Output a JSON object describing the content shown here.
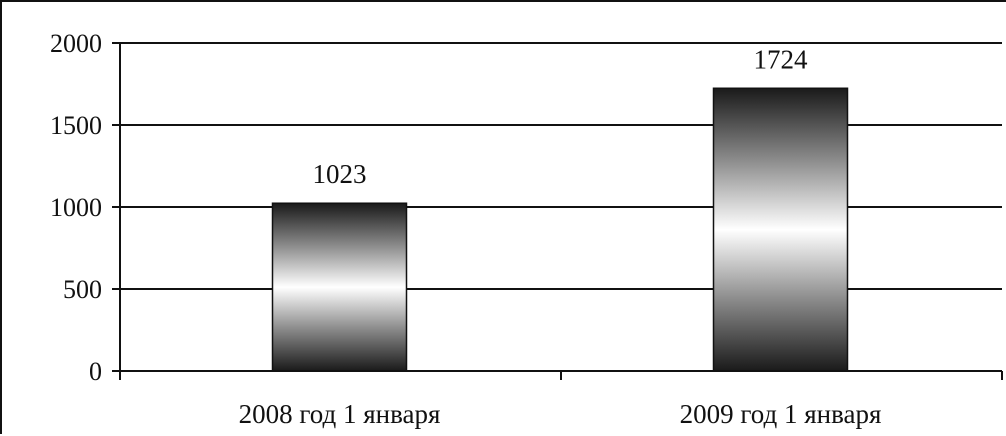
{
  "chart_data": {
    "type": "bar",
    "categories": [
      "2008 год 1 января",
      "2009 год 1 января"
    ],
    "values": [
      1023,
      1724
    ],
    "data_labels": [
      "1023",
      "1724"
    ],
    "ylim": [
      0,
      2000
    ],
    "yticks": [
      0,
      500,
      1000,
      1500,
      2000
    ],
    "ytick_labels": [
      "0",
      "500",
      "1000",
      "1500",
      "2000"
    ],
    "grid": true,
    "legend": "none",
    "colors": {
      "bar_dark": "#1a1a1a",
      "bar_light": "#ffffff",
      "grid": "#111111",
      "axis": "#111111"
    }
  }
}
